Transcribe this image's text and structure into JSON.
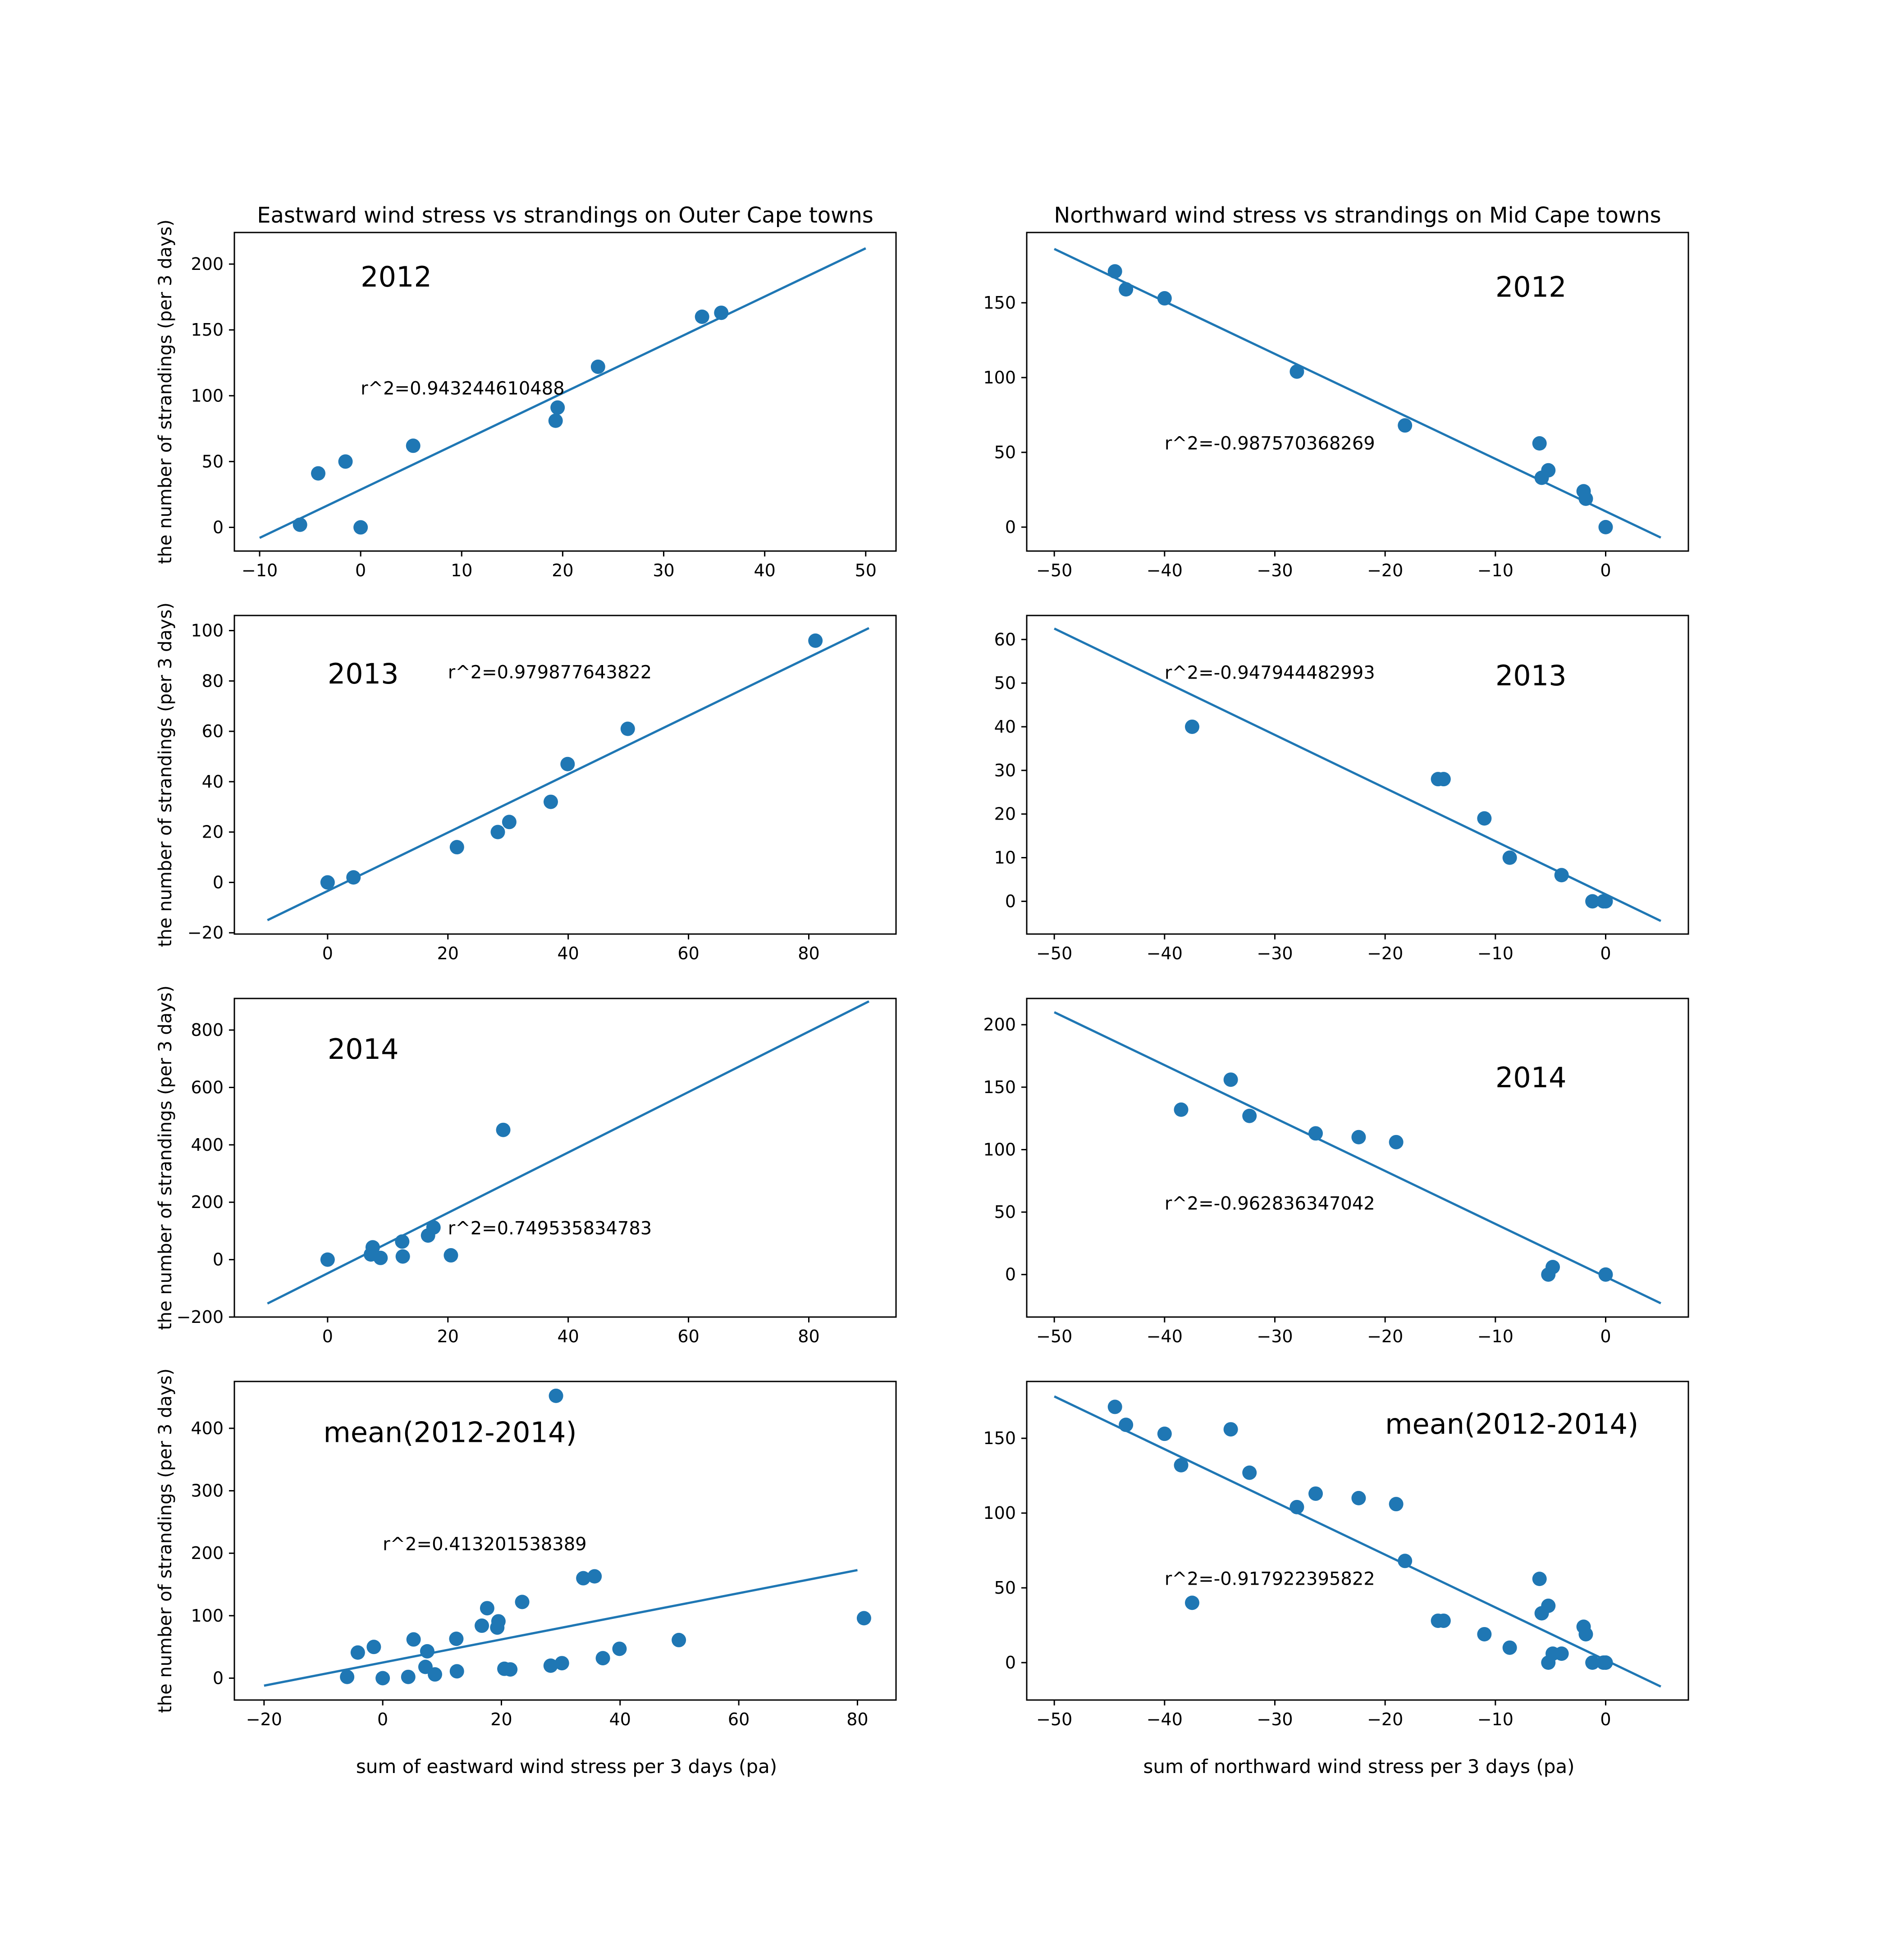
{
  "figure": {
    "xlabel_left": "sum of eastward wind stress per 3 days (pa)",
    "xlabel_right": "sum of northward wind stress per 3 days (pa)",
    "colors": {
      "series": "#1f77b4",
      "axes": "#000000",
      "background": "#ffffff"
    }
  },
  "chart_data": [
    {
      "type": "scatter",
      "row": 0,
      "col": 0,
      "title": "Eastward wind stress vs strandings on Outer Cape towns",
      "ylabel": "the number of strandings (per 3 days)",
      "xlabel": "",
      "xlim": [
        -12.5,
        53
      ],
      "ylim": [
        -18,
        224
      ],
      "xticks": [
        -10,
        0,
        10,
        20,
        30,
        40,
        50
      ],
      "yticks": [
        0,
        50,
        100,
        150,
        200
      ],
      "x": [
        -6,
        -4.2,
        -1.5,
        0,
        5.2,
        19.3,
        19.5,
        23.5,
        33.8,
        35.7
      ],
      "y": [
        2,
        41,
        50,
        0,
        62,
        81,
        91,
        122,
        160,
        163
      ],
      "fit": {
        "x": [
          -10,
          50
        ],
        "y": [
          -8,
          212
        ]
      },
      "year_label": "2012",
      "year_pos": [
        0,
        183
      ],
      "r2_label": "r^2=0.943244610488",
      "r2_pos": [
        0,
        101
      ],
      "year_size": "big"
    },
    {
      "type": "scatter",
      "row": 0,
      "col": 1,
      "title": "Northward wind stress vs strandings on Mid Cape towns",
      "ylabel": "",
      "xlabel": "",
      "xlim": [
        -52.5,
        7.5
      ],
      "ylim": [
        -16,
        197
      ],
      "xticks": [
        -50,
        -40,
        -30,
        -20,
        -10,
        0
      ],
      "yticks": [
        0,
        50,
        100,
        150
      ],
      "x": [
        -44.5,
        -43.5,
        -40,
        -28,
        -18.2,
        -6,
        -5.8,
        -5.2,
        -2,
        -1.8,
        0
      ],
      "y": [
        171,
        159,
        153,
        104,
        68,
        56,
        33,
        38,
        24,
        19,
        0
      ],
      "fit": {
        "x": [
          -50,
          5
        ],
        "y": [
          186,
          -7
        ]
      },
      "year_label": "2012",
      "year_pos": [
        -10,
        154
      ],
      "r2_label": "r^2=-0.987570368269",
      "r2_pos": [
        -40,
        52
      ],
      "year_size": "big"
    },
    {
      "type": "scatter",
      "row": 1,
      "col": 0,
      "title": "",
      "ylabel": "the number of strandings (per 3 days)",
      "xlabel": "",
      "xlim": [
        -15.5,
        94.5
      ],
      "ylim": [
        -20.5,
        106
      ],
      "xticks": [
        0,
        20,
        40,
        60,
        80
      ],
      "yticks": [
        -20,
        0,
        20,
        40,
        60,
        80,
        100
      ],
      "x": [
        0,
        4.3,
        21.5,
        28.3,
        30.2,
        37.1,
        39.9,
        49.9,
        81.1
      ],
      "y": [
        0,
        2,
        14,
        20,
        24,
        32,
        47,
        61,
        96
      ],
      "fit": {
        "x": [
          -10,
          90
        ],
        "y": [
          -15,
          101
        ]
      },
      "year_label": "2013",
      "year_pos": [
        0,
        79
      ],
      "r2_label": "r^2=0.979877643822",
      "r2_pos": [
        20,
        81
      ],
      "year_size": "big"
    },
    {
      "type": "scatter",
      "row": 1,
      "col": 1,
      "title": "",
      "ylabel": "",
      "xlabel": "",
      "xlim": [
        -52.5,
        7.5
      ],
      "ylim": [
        -7.5,
        65.5
      ],
      "xticks": [
        -50,
        -40,
        -30,
        -20,
        -10,
        0
      ],
      "yticks": [
        0,
        10,
        20,
        30,
        40,
        50,
        60
      ],
      "x": [
        -37.5,
        -15.2,
        -14.7,
        -11,
        -8.7,
        -4,
        -1.2,
        -0.2,
        0
      ],
      "y": [
        40,
        28,
        28,
        19,
        10,
        6,
        0,
        0,
        0
      ],
      "fit": {
        "x": [
          -50,
          5
        ],
        "y": [
          62.5,
          -4.5
        ]
      },
      "year_label": "2013",
      "year_pos": [
        -10,
        49.5
      ],
      "r2_label": "r^2=-0.947944482993",
      "r2_pos": [
        -40,
        51
      ],
      "year_size": "big"
    },
    {
      "type": "scatter",
      "row": 2,
      "col": 0,
      "title": "",
      "ylabel": "the number of strandings (per 3 days)",
      "xlabel": "",
      "xlim": [
        -15.5,
        94.5
      ],
      "ylim": [
        -200,
        910
      ],
      "xticks": [
        0,
        20,
        40,
        60,
        80
      ],
      "yticks": [
        -200,
        0,
        200,
        400,
        600,
        800
      ],
      "x": [
        0,
        7.2,
        7.5,
        8.8,
        12.4,
        12.5,
        16.7,
        17.6,
        20.5,
        29.2
      ],
      "y": [
        0,
        18,
        43,
        6,
        63,
        11,
        84,
        112,
        15,
        452
      ],
      "fit": {
        "x": [
          -10,
          90
        ],
        "y": [
          -153,
          900
        ]
      },
      "year_label": "2014",
      "year_pos": [
        0,
        700
      ],
      "r2_label": "r^2=0.749535834783",
      "r2_pos": [
        20,
        88
      ],
      "year_size": "big"
    },
    {
      "type": "scatter",
      "row": 2,
      "col": 1,
      "title": "",
      "ylabel": "",
      "xlabel": "",
      "xlim": [
        -52.5,
        7.5
      ],
      "ylim": [
        -34,
        221
      ],
      "xticks": [
        -50,
        -40,
        -30,
        -20,
        -10,
        0
      ],
      "yticks": [
        0,
        50,
        100,
        150,
        200
      ],
      "x": [
        -38.5,
        -34,
        -32.3,
        -26.3,
        -22.4,
        -19,
        -5.2,
        -4.8,
        0
      ],
      "y": [
        132,
        156,
        127,
        113,
        110,
        106,
        0,
        6,
        0
      ],
      "fit": {
        "x": [
          -50,
          5
        ],
        "y": [
          210,
          -23
        ]
      },
      "year_label": "2014",
      "year_pos": [
        -10,
        150
      ],
      "r2_label": "r^2=-0.962836347042",
      "r2_pos": [
        -40,
        52
      ],
      "year_size": "big"
    },
    {
      "type": "scatter",
      "row": 3,
      "col": 0,
      "title": "",
      "ylabel": "the number of strandings (per 3 days)",
      "xlabel": "sum of eastward wind stress per 3 days (pa)",
      "xlim": [
        -25,
        86.5
      ],
      "ylim": [
        -35,
        475
      ],
      "xticks": [
        -20,
        0,
        20,
        40,
        60,
        80
      ],
      "yticks": [
        0,
        100,
        200,
        300,
        400
      ],
      "x": [
        -6,
        -4.2,
        -1.5,
        0,
        4.3,
        5.2,
        7.2,
        7.5,
        8.8,
        12.4,
        12.5,
        16.7,
        17.6,
        19.3,
        19.5,
        20.5,
        21.5,
        23.5,
        28.3,
        29.2,
        30.2,
        33.8,
        35.7,
        37.1,
        39.9,
        49.9,
        81.1
      ],
      "y": [
        2,
        41,
        50,
        0,
        2,
        62,
        18,
        43,
        6,
        63,
        11,
        84,
        112,
        81,
        91,
        15,
        14,
        122,
        20,
        452,
        24,
        160,
        163,
        32,
        47,
        61,
        96
      ],
      "fit": {
        "x": [
          -20,
          80
        ],
        "y": [
          -12,
          173
        ]
      },
      "year_label": "mean(2012-2014)",
      "year_pos": [
        -10,
        378
      ],
      "r2_label": "r^2=0.413201538389",
      "r2_pos": [
        0,
        205
      ],
      "year_size": "big"
    },
    {
      "type": "scatter",
      "row": 3,
      "col": 1,
      "title": "",
      "ylabel": "",
      "xlabel": "sum of northward wind stress per 3 days (pa)",
      "xlim": [
        -52.5,
        7.5
      ],
      "ylim": [
        -25,
        188
      ],
      "xticks": [
        -50,
        -40,
        -30,
        -20,
        -10,
        0
      ],
      "yticks": [
        0,
        50,
        100,
        150
      ],
      "x": [
        -44.5,
        -43.5,
        -40,
        -38.5,
        -37.5,
        -34,
        -32.3,
        -28,
        -26.3,
        -22.4,
        -19,
        -18.2,
        -15.2,
        -14.7,
        -11,
        -8.7,
        -6,
        -5.8,
        -5.2,
        -5.2,
        -4.8,
        -4,
        -2,
        -1.8,
        -1.2,
        -0.2,
        0,
        0
      ],
      "y": [
        171,
        159,
        153,
        132,
        40,
        156,
        127,
        104,
        113,
        110,
        106,
        68,
        28,
        28,
        19,
        10,
        56,
        33,
        38,
        0,
        6,
        6,
        24,
        19,
        0,
        0,
        0,
        0
      ],
      "fit": {
        "x": [
          -50,
          5
        ],
        "y": [
          178,
          -16
        ]
      },
      "year_label": "mean(2012-2014)",
      "year_pos": [
        -20,
        153
      ],
      "r2_label": "r^2=-0.917922395822",
      "r2_pos": [
        -40,
        52
      ],
      "year_size": "big"
    }
  ]
}
